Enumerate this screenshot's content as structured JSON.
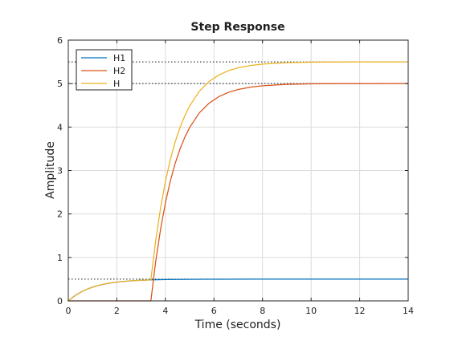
{
  "chart_data": {
    "type": "line",
    "title": "Step Response",
    "xlabel": "Time (seconds)",
    "ylabel": "Amplitude",
    "xlim": [
      0,
      14
    ],
    "ylim": [
      0,
      6
    ],
    "xticks": [
      0,
      2,
      4,
      6,
      8,
      10,
      12,
      14
    ],
    "yticks": [
      0,
      1,
      2,
      3,
      4,
      5,
      6
    ],
    "grid": true,
    "legend_position": "top-left",
    "steady_state_lines": [
      0.5,
      5.0,
      5.5
    ],
    "series": [
      {
        "name": "H1",
        "color": "#0072bd",
        "x": [
          0.0,
          0.2,
          0.4,
          0.6,
          0.8,
          1.0,
          1.2,
          1.4,
          1.6,
          1.8,
          2.0,
          2.5,
          3.0,
          3.5,
          4.0,
          5.0,
          6.0,
          8.0,
          10.0,
          12.0,
          14.0
        ],
        "y": [
          0.0,
          0.091,
          0.165,
          0.226,
          0.276,
          0.316,
          0.349,
          0.377,
          0.399,
          0.417,
          0.432,
          0.459,
          0.475,
          0.485,
          0.491,
          0.497,
          0.499,
          0.5,
          0.5,
          0.5,
          0.5
        ]
      },
      {
        "name": "H2",
        "color": "#d95319",
        "x": [
          0.0,
          3.4,
          3.6,
          3.8,
          4.0,
          4.2,
          4.4,
          4.6,
          4.8,
          5.0,
          5.4,
          5.8,
          6.2,
          6.6,
          7.0,
          7.5,
          8.0,
          9.0,
          10.0,
          11.0,
          12.0,
          14.0
        ],
        "y": [
          0.0,
          0.0,
          0.906,
          1.648,
          2.256,
          2.753,
          3.161,
          3.494,
          3.767,
          3.991,
          4.328,
          4.55,
          4.699,
          4.799,
          4.865,
          4.918,
          4.95,
          4.982,
          4.993,
          4.998,
          4.999,
          5.0
        ]
      },
      {
        "name": "H",
        "color": "#edb120",
        "x": [
          0.0,
          0.2,
          0.4,
          0.6,
          0.8,
          1.0,
          1.2,
          1.4,
          1.6,
          1.8,
          2.0,
          2.5,
          3.0,
          3.4,
          3.6,
          3.8,
          4.0,
          4.2,
          4.4,
          4.6,
          4.8,
          5.0,
          5.4,
          5.8,
          6.2,
          6.6,
          7.0,
          7.5,
          8.0,
          9.0,
          10.0,
          11.0,
          12.0,
          14.0
        ],
        "y": [
          0.0,
          0.091,
          0.165,
          0.226,
          0.276,
          0.316,
          0.349,
          0.377,
          0.399,
          0.417,
          0.432,
          0.459,
          0.475,
          0.483,
          1.392,
          2.136,
          2.747,
          3.246,
          3.655,
          3.989,
          4.263,
          4.488,
          4.826,
          5.049,
          5.198,
          5.298,
          5.364,
          5.417,
          5.449,
          5.481,
          5.493,
          5.498,
          5.499,
          5.5
        ]
      }
    ]
  }
}
